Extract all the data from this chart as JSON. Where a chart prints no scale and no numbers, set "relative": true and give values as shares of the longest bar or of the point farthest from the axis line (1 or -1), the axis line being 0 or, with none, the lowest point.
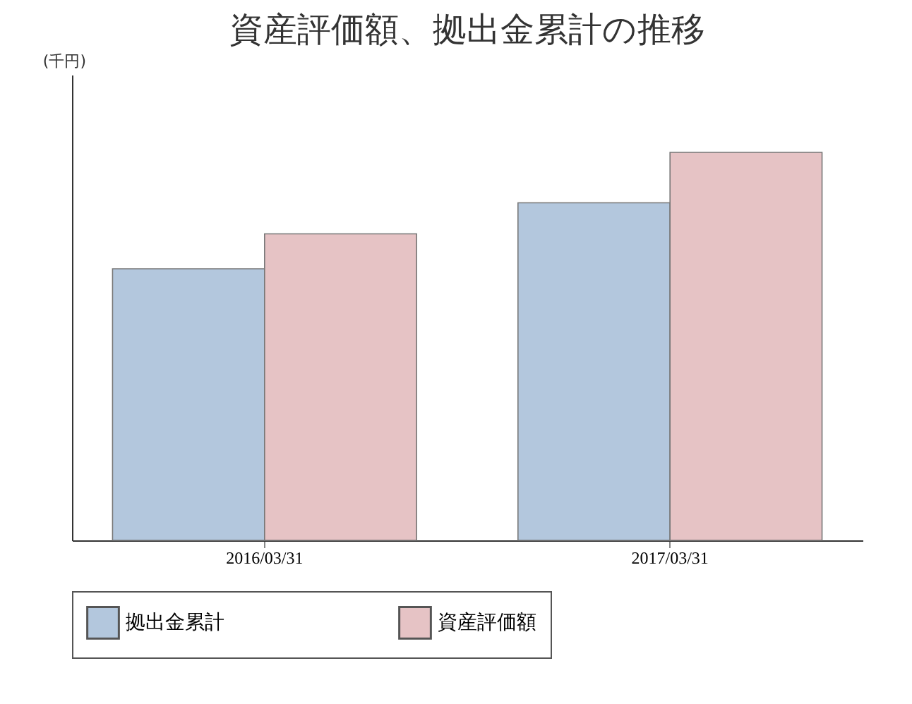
{
  "chart_data": {
    "type": "bar",
    "title": "資産評価額、拠出金累計の推移",
    "annotations": [
      "(千円)"
    ],
    "relative": true,
    "categories": [
      "2016/03/31",
      "2017/03/31"
    ],
    "series": [
      {
        "name": "拠出金累計",
        "color": "#b3c7dd",
        "values": [
          0.7,
          0.87
        ]
      },
      {
        "name": "資産評価額",
        "color": "#e6c3c5",
        "values": [
          0.79,
          1
        ]
      }
    ],
    "legend": "bottom",
    "grid": false
  }
}
